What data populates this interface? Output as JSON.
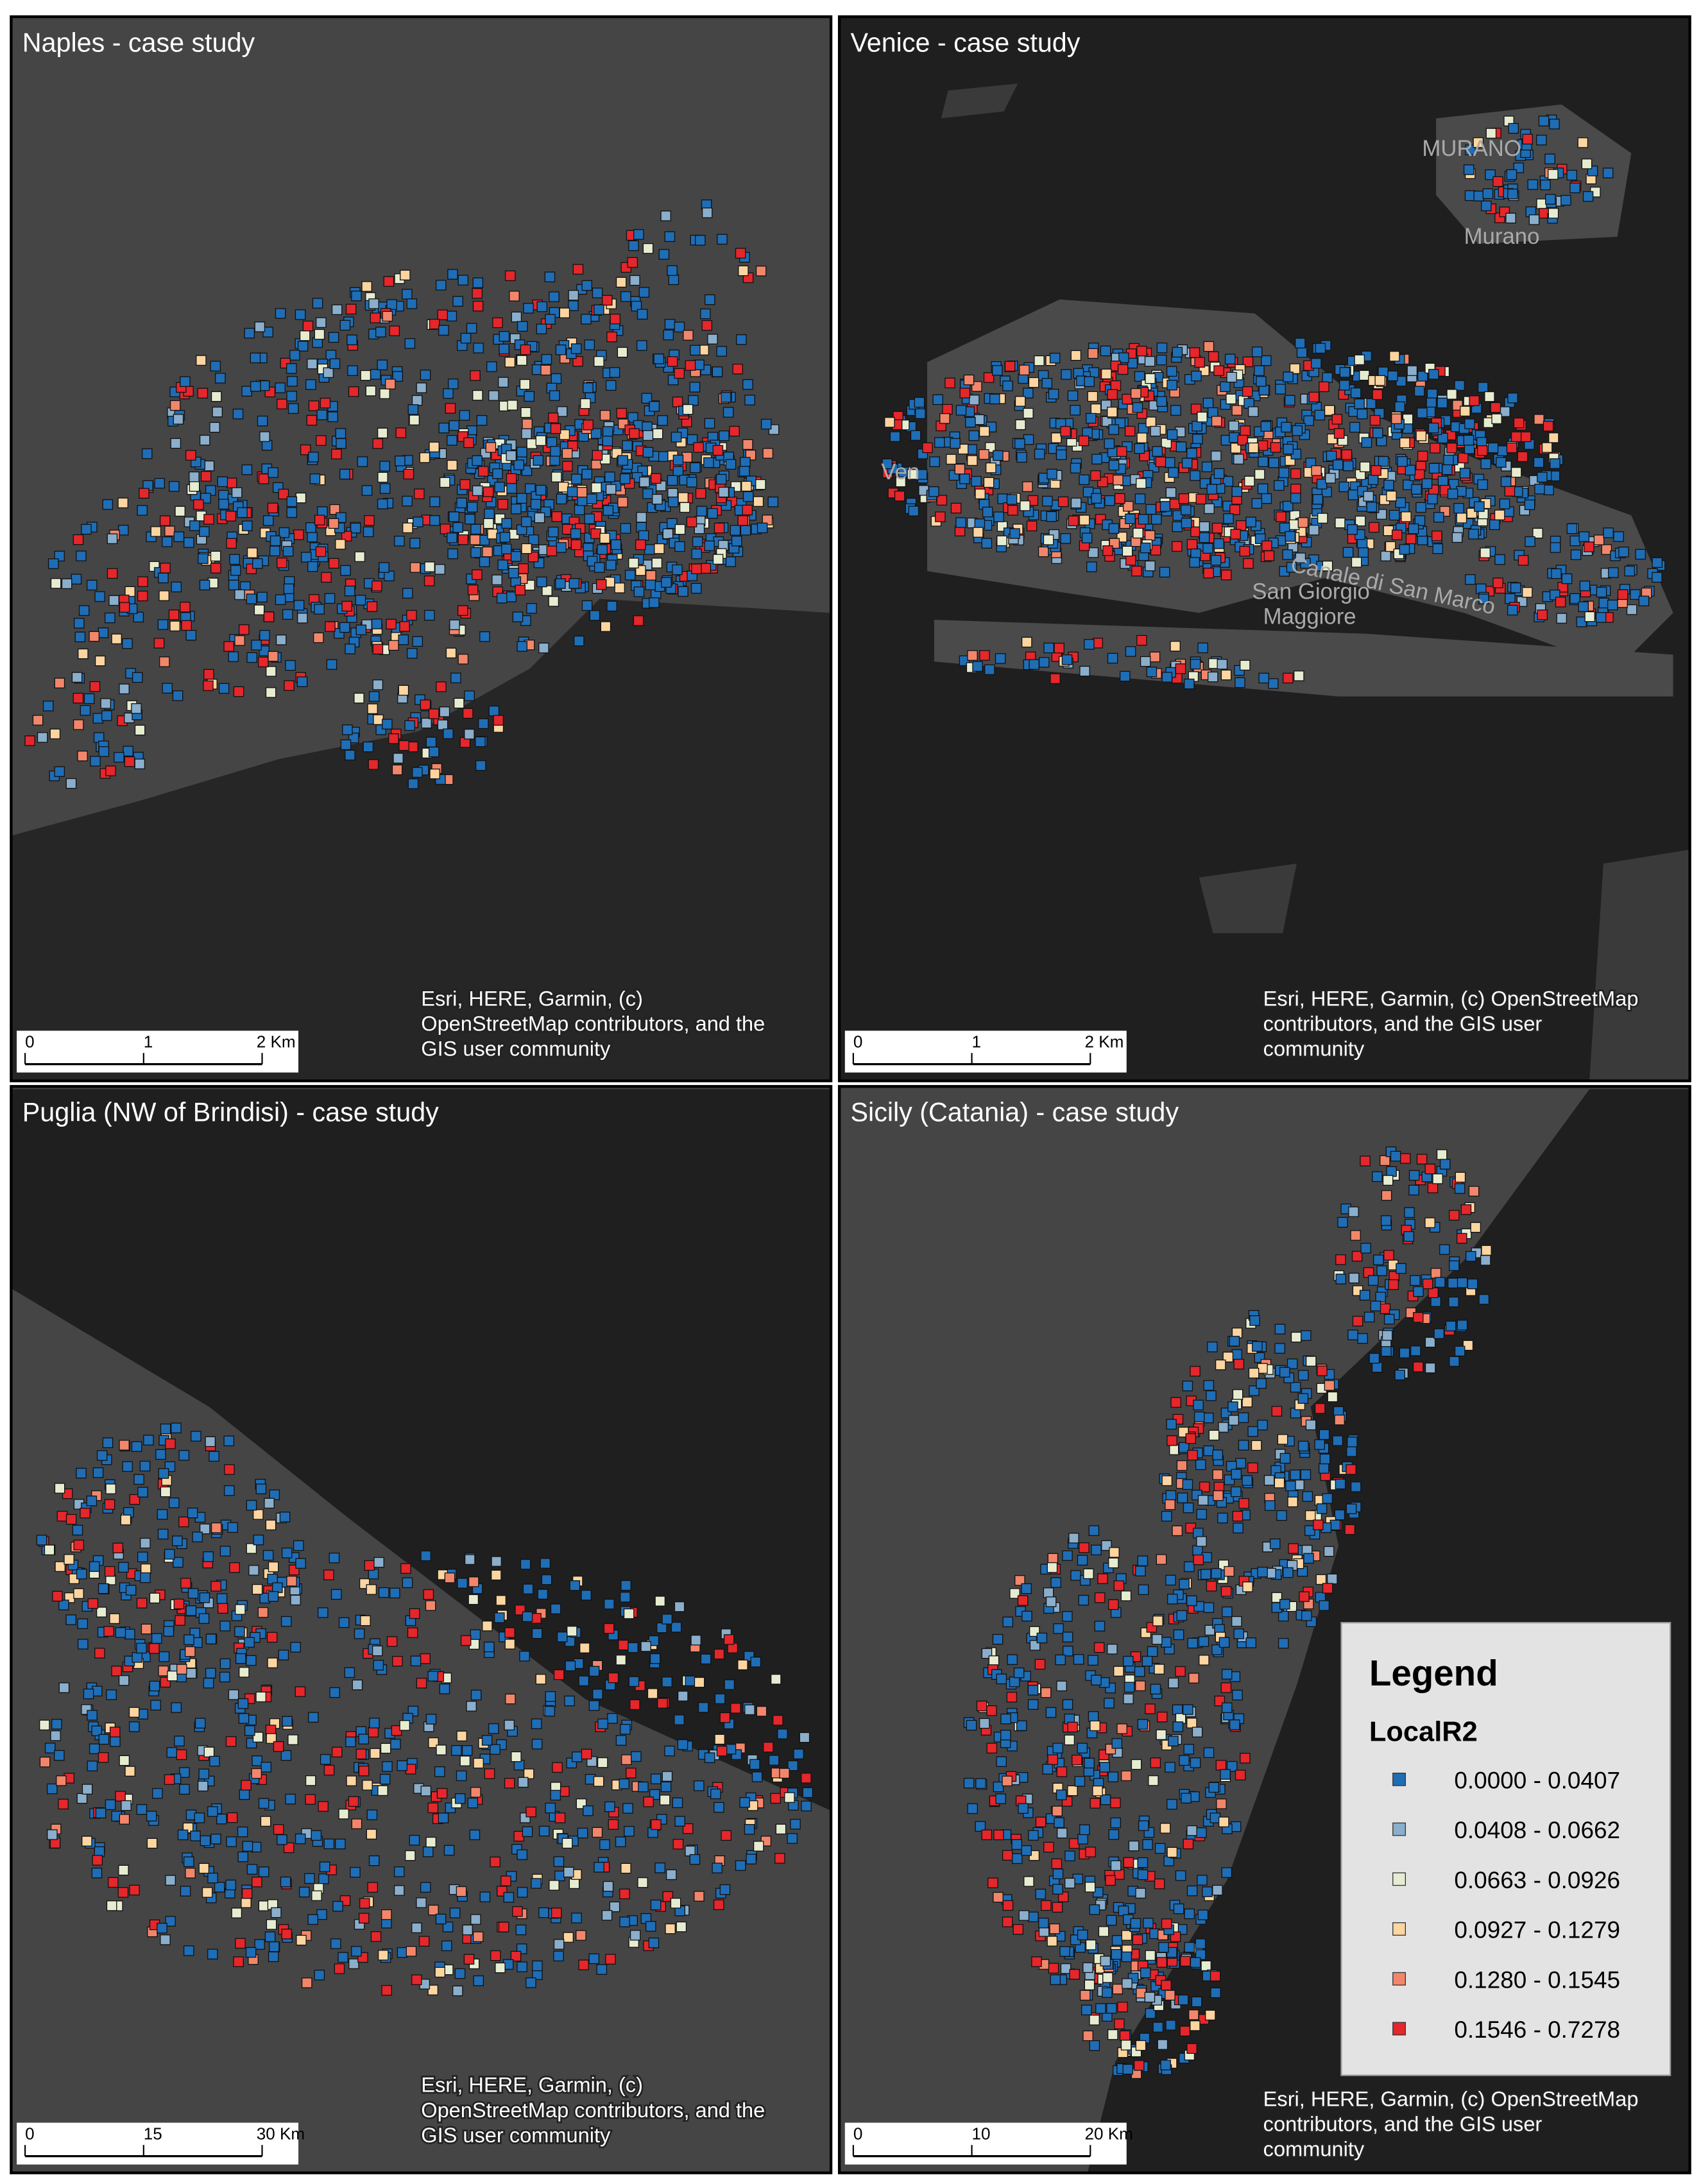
{
  "panels": [
    {
      "title": "Naples - case study",
      "scale": [
        "0",
        "1",
        "2 Km"
      ],
      "attribution": [
        "Esri, HERE, Garmin, (c)",
        "OpenStreetMap contributors, and the",
        "GIS user community"
      ]
    },
    {
      "title": "Venice - case study",
      "scale": [
        "0",
        "1",
        "2 Km"
      ],
      "attribution": [
        "Esri, HERE, Garmin, (c) OpenStreetMap",
        "contributors, and the GIS user",
        "community"
      ],
      "basemap_labels": [
        "MURANO",
        "Murano",
        "Ven",
        "San Giorgio",
        "Maggiore",
        "Canale di San Marco"
      ]
    },
    {
      "title": "Puglia (NW of Brindisi)  - case study",
      "scale": [
        "0",
        "15",
        "30 Km"
      ],
      "attribution": [
        "Esri, HERE, Garmin, (c)",
        "OpenStreetMap contributors, and the",
        "GIS user community"
      ]
    },
    {
      "title": "Sicily (Catania) - case study",
      "scale": [
        "0",
        "10",
        "20 Km"
      ],
      "attribution": [
        "Esri, HERE, Garmin, (c) OpenStreetMap",
        "contributors, and the GIS user",
        "community"
      ]
    }
  ],
  "legend": {
    "title": "Legend",
    "field": "LocalR2",
    "classes": [
      {
        "label": "0.0000 - 0.0407",
        "color": "#1f6db5"
      },
      {
        "label": "0.0408 - 0.0662",
        "color": "#8aaecb"
      },
      {
        "label": "0.0663 - 0.0926",
        "color": "#e6ecd0"
      },
      {
        "label": "0.0927 - 0.1279",
        "color": "#fcd5a0"
      },
      {
        "label": "0.1280 - 0.1545",
        "color": "#f2866a"
      },
      {
        "label": "0.1546 - 0.7278",
        "color": "#e5262b"
      }
    ]
  }
}
